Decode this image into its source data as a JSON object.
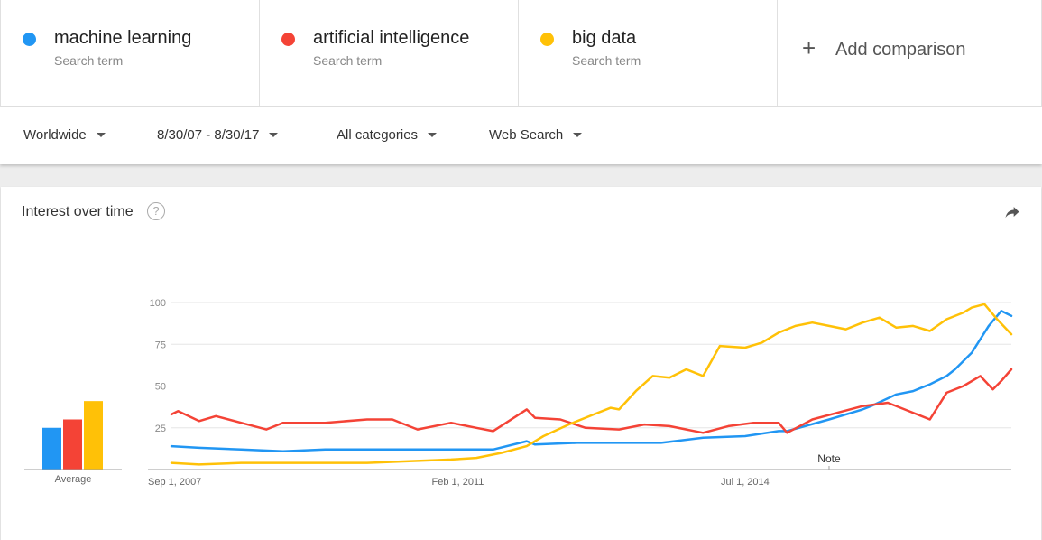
{
  "terms": [
    {
      "name": "machine learning",
      "sub": "Search term",
      "color": "#2196f3"
    },
    {
      "name": "artificial intelligence",
      "sub": "Search term",
      "color": "#f44336"
    },
    {
      "name": "big data",
      "sub": "Search term",
      "color": "#ffc107"
    }
  ],
  "add_comparison": {
    "plus": "+",
    "label": "Add comparison"
  },
  "filters": {
    "region": "Worldwide",
    "date_range": "8/30/07 - 8/30/17",
    "category": "All categories",
    "search_type": "Web Search"
  },
  "card": {
    "title": "Interest over time",
    "help": "?"
  },
  "chart_data": {
    "type": "line",
    "title": "Interest over time",
    "ylim": [
      0,
      100
    ],
    "yticks": [
      25,
      50,
      75,
      100
    ],
    "xlim": [
      2007.67,
      2017.67
    ],
    "xtick_labels": [
      "Sep 1, 2007",
      "Feb 1, 2011",
      "Jul 1, 2014"
    ],
    "xtick_positions": [
      2007.67,
      2011.08,
      2014.5
    ],
    "annotation": {
      "label": "Note",
      "x": 2015.5
    },
    "average": {
      "label": "Average",
      "values": [
        25,
        30,
        41
      ]
    },
    "series": [
      {
        "name": "machine learning",
        "color": "#2196f3",
        "points": [
          [
            2007.67,
            14
          ],
          [
            2008.0,
            13
          ],
          [
            2008.5,
            12
          ],
          [
            2009.0,
            11
          ],
          [
            2009.5,
            12
          ],
          [
            2010.0,
            12
          ],
          [
            2010.5,
            12
          ],
          [
            2011.0,
            12
          ],
          [
            2011.5,
            12
          ],
          [
            2011.9,
            17
          ],
          [
            2012.0,
            15
          ],
          [
            2012.5,
            16
          ],
          [
            2013.0,
            16
          ],
          [
            2013.5,
            16
          ],
          [
            2014.0,
            19
          ],
          [
            2014.5,
            20
          ],
          [
            2014.9,
            23
          ],
          [
            2015.0,
            23
          ],
          [
            2015.5,
            30
          ],
          [
            2015.9,
            36
          ],
          [
            2016.0,
            38
          ],
          [
            2016.3,
            45
          ],
          [
            2016.5,
            47
          ],
          [
            2016.7,
            51
          ],
          [
            2016.9,
            56
          ],
          [
            2017.0,
            60
          ],
          [
            2017.2,
            70
          ],
          [
            2017.4,
            86
          ],
          [
            2017.55,
            95
          ],
          [
            2017.67,
            92
          ]
        ]
      },
      {
        "name": "artificial intelligence",
        "color": "#f44336",
        "points": [
          [
            2007.67,
            33
          ],
          [
            2007.75,
            35
          ],
          [
            2008.0,
            29
          ],
          [
            2008.2,
            32
          ],
          [
            2008.5,
            28
          ],
          [
            2008.8,
            24
          ],
          [
            2009.0,
            28
          ],
          [
            2009.5,
            28
          ],
          [
            2010.0,
            30
          ],
          [
            2010.3,
            30
          ],
          [
            2010.6,
            24
          ],
          [
            2011.0,
            28
          ],
          [
            2011.3,
            25
          ],
          [
            2011.5,
            23
          ],
          [
            2011.9,
            36
          ],
          [
            2012.0,
            31
          ],
          [
            2012.3,
            30
          ],
          [
            2012.6,
            25
          ],
          [
            2013.0,
            24
          ],
          [
            2013.3,
            27
          ],
          [
            2013.6,
            26
          ],
          [
            2014.0,
            22
          ],
          [
            2014.3,
            26
          ],
          [
            2014.6,
            28
          ],
          [
            2014.9,
            28
          ],
          [
            2015.0,
            22
          ],
          [
            2015.3,
            30
          ],
          [
            2015.6,
            34
          ],
          [
            2015.9,
            38
          ],
          [
            2016.2,
            40
          ],
          [
            2016.5,
            34
          ],
          [
            2016.7,
            30
          ],
          [
            2016.9,
            46
          ],
          [
            2017.1,
            50
          ],
          [
            2017.3,
            56
          ],
          [
            2017.45,
            48
          ],
          [
            2017.55,
            53
          ],
          [
            2017.67,
            60
          ]
        ]
      },
      {
        "name": "big data",
        "color": "#ffc107",
        "points": [
          [
            2007.67,
            4
          ],
          [
            2008.0,
            3
          ],
          [
            2008.5,
            4
          ],
          [
            2009.0,
            4
          ],
          [
            2009.5,
            4
          ],
          [
            2010.0,
            4
          ],
          [
            2010.5,
            5
          ],
          [
            2011.0,
            6
          ],
          [
            2011.3,
            7
          ],
          [
            2011.6,
            10
          ],
          [
            2011.9,
            14
          ],
          [
            2012.1,
            20
          ],
          [
            2012.4,
            27
          ],
          [
            2012.7,
            33
          ],
          [
            2012.9,
            37
          ],
          [
            2013.0,
            36
          ],
          [
            2013.2,
            47
          ],
          [
            2013.4,
            56
          ],
          [
            2013.6,
            55
          ],
          [
            2013.8,
            60
          ],
          [
            2014.0,
            56
          ],
          [
            2014.2,
            74
          ],
          [
            2014.5,
            73
          ],
          [
            2014.7,
            76
          ],
          [
            2014.9,
            82
          ],
          [
            2015.1,
            86
          ],
          [
            2015.3,
            88
          ],
          [
            2015.5,
            86
          ],
          [
            2015.7,
            84
          ],
          [
            2015.9,
            88
          ],
          [
            2016.1,
            91
          ],
          [
            2016.3,
            85
          ],
          [
            2016.5,
            86
          ],
          [
            2016.7,
            83
          ],
          [
            2016.9,
            90
          ],
          [
            2017.1,
            94
          ],
          [
            2017.2,
            97
          ],
          [
            2017.35,
            99
          ],
          [
            2017.5,
            90
          ],
          [
            2017.67,
            81
          ]
        ]
      }
    ]
  }
}
